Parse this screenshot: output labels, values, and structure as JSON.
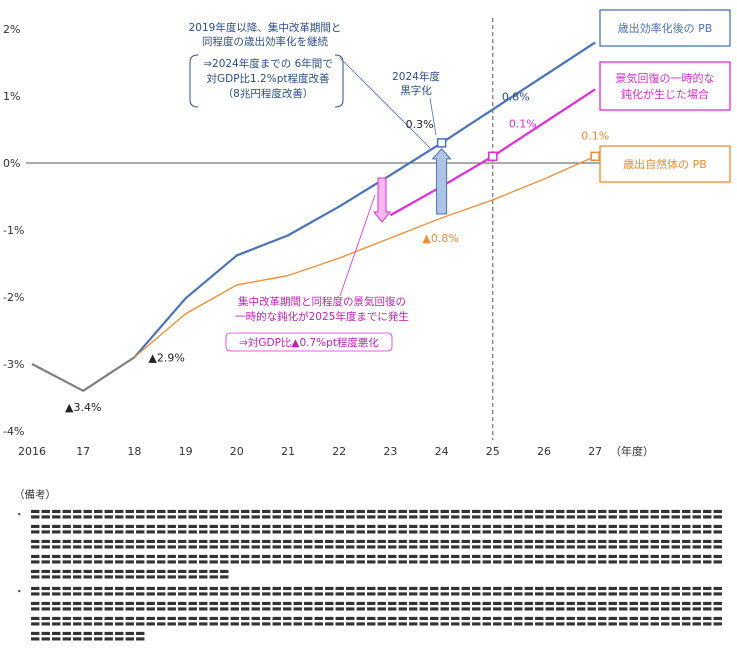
{
  "chart_data": {
    "type": "line",
    "categories": [
      "2016",
      "17",
      "18",
      "19",
      "20",
      "21",
      "22",
      "23",
      "24",
      "25",
      "26",
      "27"
    ],
    "x_unit_label": "（年度）",
    "ylim": [
      -4,
      2
    ],
    "yticks": [
      2,
      1,
      0,
      -1,
      -2,
      -3,
      -4
    ],
    "ytick_labels": [
      "2%",
      "1%",
      "0%",
      "-1%",
      "-2%",
      "-3%",
      "-4%"
    ],
    "grid": false,
    "series": [
      {
        "key": "history",
        "color": "#7f7f7f",
        "values": [
          -3.0,
          -3.4,
          -2.9,
          null,
          null,
          null,
          null,
          null,
          null,
          null,
          null,
          null
        ]
      },
      {
        "key": "pb_after",
        "name": "歳出効率化後の PB",
        "color": "#4a72b8",
        "values": [
          null,
          null,
          -2.9,
          -2.02,
          -1.38,
          -1.08,
          -0.65,
          -0.18,
          0.3,
          0.8,
          1.3,
          1.8
        ]
      },
      {
        "key": "natural",
        "name": "歳出自然体の PB",
        "color": "#f08a2e",
        "values": [
          null,
          null,
          -2.9,
          -2.25,
          -1.82,
          -1.68,
          -1.42,
          -1.12,
          -0.82,
          -0.55,
          -0.24,
          0.1
        ]
      },
      {
        "key": "temp",
        "name": "景気回復の一時的な鈍化が生じた場合",
        "color": "#e02bd8",
        "values": [
          null,
          null,
          null,
          null,
          null,
          null,
          null,
          -0.78,
          -0.35,
          0.1,
          0.6,
          1.1
        ]
      }
    ],
    "point_labels": [
      {
        "text": "▲3.4%",
        "x": 1,
        "y": -3.4
      },
      {
        "text": "▲2.9%",
        "x": 2,
        "y": -2.9
      },
      {
        "text": "▲0.8%",
        "x": 8,
        "y": -0.82
      },
      {
        "text": "0.3%",
        "x": 8,
        "y": 0.3
      },
      {
        "text": "0.8%",
        "x": 9,
        "y": 0.8
      },
      {
        "text": "0.1%",
        "x": 9,
        "y": 0.1
      },
      {
        "text": "0.1%",
        "x": 11,
        "y": 0.1
      }
    ],
    "annotations": {
      "top_lines": [
        "2019年度以降、集中改革期間と",
        "同程度の歳出効率化を継続"
      ],
      "top_bracket": [
        "⇒2024年度までの 6年間で",
        "対GDP比1.2%pt程度改善",
        "（8兆円程度改善）"
      ],
      "breakeven_lines": [
        "2024年度",
        "黒字化"
      ],
      "slow_lines": [
        "集中改革期間と同程度の景気回復の",
        "一時的な鈍化が2025年度までに発生"
      ],
      "slow_bracket": "⇒対GDP比▲0.7%pt程度悪化"
    }
  },
  "notes": {
    "heading": "（備考）",
    "bullet_symbol": "・",
    "bullets": [
      "〓〓〓〓〓〓〓〓〓〓〓〓〓〓〓〓〓〓〓〓〓〓〓〓〓〓〓〓〓〓〓〓〓〓〓〓〓〓〓〓〓〓〓〓〓〓〓〓〓〓〓〓〓〓〓〓〓〓〓〓〓〓〓〓〓〓〓〓〓〓〓〓〓〓〓〓〓〓〓〓〓〓〓〓〓〓〓〓〓〓〓〓〓〓〓〓〓〓〓〓〓〓〓〓〓〓〓〓〓〓〓〓〓〓〓〓〓〓〓〓〓〓〓〓〓〓〓〓〓〓〓〓〓〓〓〓〓〓〓〓〓〓〓〓〓〓〓〓〓〓〓〓〓〓〓〓〓〓〓〓〓〓〓〓〓〓〓〓〓〓〓〓〓〓〓〓〓〓〓〓〓〓〓〓〓〓〓〓〓〓〓〓〓〓〓〓〓〓〓〓〓〓〓〓〓〓〓〓〓〓〓〓〓〓〓〓〓〓〓〓〓〓〓〓〓〓〓〓〓〓〓〓〓〓〓〓〓〓〓〓〓〓〓〓〓〓〓〓〓〓〓〓〓〓〓〓〓〓〓〓〓〓〓〓〓〓〓〓〓〓〓〓〓〓〓〓〓〓〓〓〓〓〓",
      "〓〓〓〓〓〓〓〓〓〓〓〓〓〓〓〓〓〓〓〓〓〓〓〓〓〓〓〓〓〓〓〓〓〓〓〓〓〓〓〓〓〓〓〓〓〓〓〓〓〓〓〓〓〓〓〓〓〓〓〓〓〓〓〓〓〓〓〓〓〓〓〓〓〓〓〓〓〓〓〓〓〓〓〓〓〓〓〓〓〓〓〓〓〓〓〓〓〓〓〓〓〓〓〓〓〓〓〓〓〓〓〓〓〓〓〓〓〓〓〓〓〓〓〓〓〓〓〓〓〓〓〓〓〓〓〓〓〓〓〓〓〓〓〓〓〓〓〓〓〓〓〓〓〓〓〓〓〓〓〓〓〓〓〓〓〓〓〓〓〓〓〓〓〓〓〓〓〓〓〓〓〓〓〓〓〓〓〓〓〓〓〓〓〓〓〓〓〓〓〓〓〓〓〓〓〓〓〓〓"
    ]
  }
}
